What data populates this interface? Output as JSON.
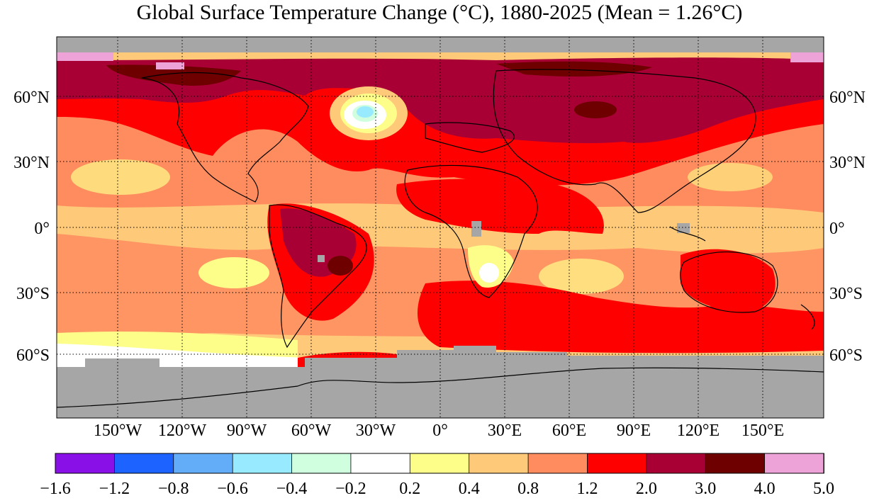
{
  "title": "Global Surface Temperature Change (°C), 1880-2025 (Mean = 1.26°C)",
  "map": {
    "lat_labels": [
      "60°N",
      "30°N",
      "0°",
      "30°S",
      "60°S"
    ],
    "lon_labels": [
      "150°W",
      "120°W",
      "90°W",
      "60°W",
      "30°W",
      "0°",
      "30°E",
      "60°E",
      "90°E",
      "120°E",
      "150°E"
    ]
  },
  "colorbar": {
    "ticks": [
      "−1.6",
      "−1.2",
      "−0.8",
      "−0.6",
      "−0.4",
      "−0.2",
      "0.2",
      "0.4",
      "0.8",
      "1.2",
      "2.0",
      "3.0",
      "4.0",
      "5.0"
    ],
    "colors": [
      "#8a10e8",
      "#1d63ff",
      "#63adf8",
      "#98eaff",
      "#d0ffdf",
      "#ffffff",
      "#fdfd8a",
      "#ffc97a",
      "#ff8c5e",
      "#ff0000",
      "#a80035",
      "#6e0000",
      "#eea3d8"
    ],
    "missing_color": "#a6a6a6"
  }
}
